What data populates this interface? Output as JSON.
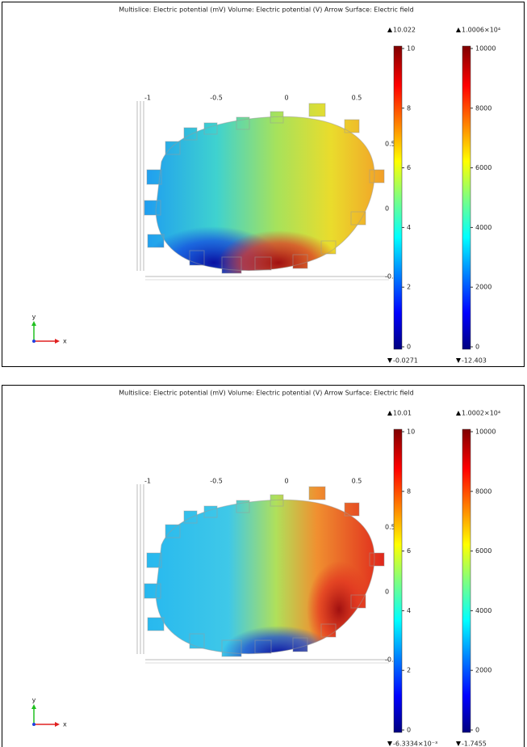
{
  "panels": [
    {
      "title": "Multislice: Electric potential (mV)  Volume: Electric potential (V)  Arrow Surface: Electric field",
      "x_tick_labels": [
        "-1",
        "-0.5",
        "0",
        "0.5"
      ],
      "y_tick_labels": [
        "0.5",
        "0",
        "-0.5"
      ],
      "colorbars": [
        {
          "max": "10.022",
          "min": "-0.0271",
          "ticks": [
            "10",
            "8",
            "6",
            "4",
            "2",
            "0"
          ]
        },
        {
          "max": "1.0006×10⁴",
          "min": "-12.403",
          "ticks": [
            "10000",
            "8000",
            "6000",
            "4000",
            "2000",
            "0"
          ]
        }
      ],
      "axes_triad": {
        "x": "x",
        "y": "y"
      }
    },
    {
      "title": "Multislice: Electric potential (mV)  Volume: Electric potential (V)  Arrow Surface: Electric field",
      "x_tick_labels": [
        "-1",
        "-0.5",
        "0",
        "0.5"
      ],
      "y_tick_labels": [
        "0.5",
        "0",
        "-0.5"
      ],
      "colorbars": [
        {
          "max": "10.01",
          "min": "-6.3334×10⁻³",
          "ticks": [
            "10",
            "8",
            "6",
            "4",
            "2",
            "0"
          ]
        },
        {
          "max": "1.0002×10⁴",
          "min": "-1.7455",
          "ticks": [
            "10000",
            "8000",
            "6000",
            "4000",
            "2000",
            "0"
          ]
        }
      ],
      "axes_triad": {
        "x": "x",
        "y": "y"
      }
    }
  ]
}
